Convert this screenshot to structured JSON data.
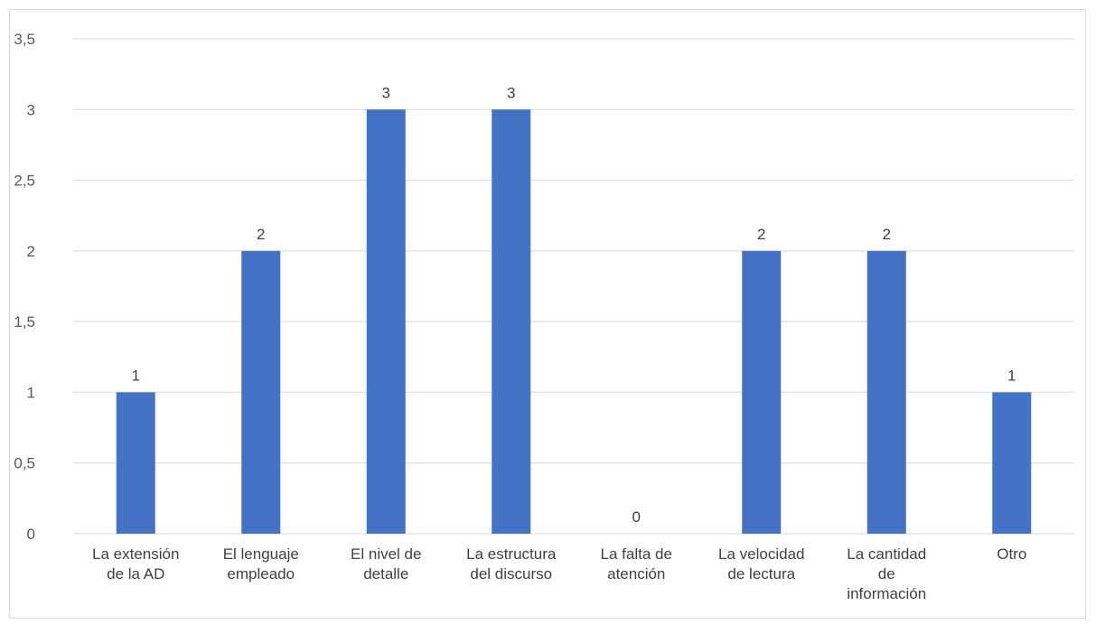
{
  "chart_data": {
    "type": "bar",
    "title": "",
    "xlabel": "",
    "ylabel": "",
    "categories": [
      [
        "La extensión",
        "de la AD"
      ],
      [
        "El lenguaje",
        "empleado"
      ],
      [
        "El nivel de",
        "detalle"
      ],
      [
        "La estructura",
        "del discurso"
      ],
      [
        "La falta de",
        "atención"
      ],
      [
        "La velocidad",
        "de lectura"
      ],
      [
        "La cantidad",
        "de",
        "información"
      ],
      [
        "Otro"
      ]
    ],
    "values": [
      1,
      2,
      3,
      3,
      0,
      2,
      2,
      1
    ],
    "data_labels": [
      "1",
      "2",
      "3",
      "3",
      "0",
      "2",
      "2",
      "1"
    ],
    "y_ticks": [
      0,
      0.5,
      1,
      1.5,
      2,
      2.5,
      3,
      3.5
    ],
    "y_tick_labels": [
      "0",
      "0,5",
      "1",
      "1,5",
      "2",
      "2,5",
      "3",
      "3,5"
    ],
    "ylim": [
      0,
      3.5
    ],
    "grid": true,
    "legend": "none",
    "bar_color": "#4472C4",
    "grid_color": "#d9d9d9"
  }
}
